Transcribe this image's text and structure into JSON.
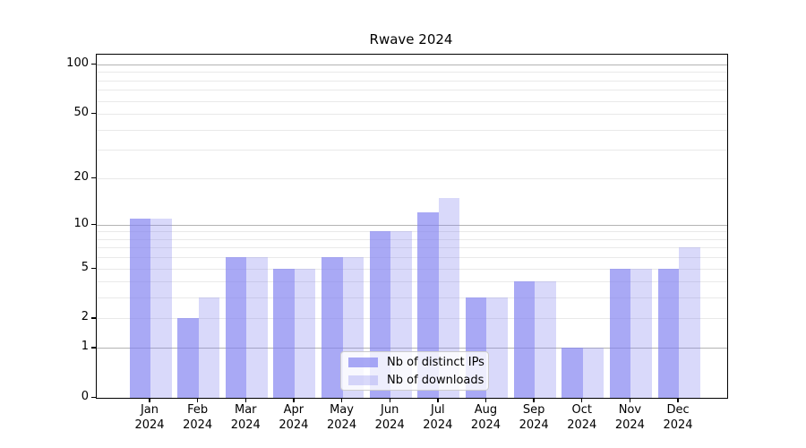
{
  "chart_data": {
    "type": "bar",
    "title": "Rwave 2024",
    "categories": [
      "Jan",
      "Feb",
      "Mar",
      "Apr",
      "May",
      "Jun",
      "Jul",
      "Aug",
      "Sep",
      "Oct",
      "Nov",
      "Dec"
    ],
    "x_tick_second_line": "2024",
    "series": [
      {
        "name": "Nb of distinct IPs",
        "color": "rgba(128,128,240,0.68)",
        "approx_hex": "#A9A9F4",
        "values": [
          11,
          2,
          6,
          5,
          6,
          9,
          12,
          3,
          4,
          1,
          5,
          5
        ]
      },
      {
        "name": "Nb of downloads",
        "color": "rgba(128,128,240,0.30)",
        "approx_hex": "#DCDCF8",
        "values": [
          11,
          3,
          6,
          5,
          6,
          9,
          15,
          3,
          4,
          1,
          5,
          7
        ]
      }
    ],
    "yscale": "log1p",
    "ylim": [
      0,
      100
    ],
    "y_ticks": [
      0,
      1,
      2,
      5,
      10,
      20,
      50,
      100
    ],
    "y_major_gridlines": [
      1,
      10,
      100
    ],
    "y_minor_gridlines": [
      2,
      3,
      4,
      5,
      6,
      7,
      8,
      9,
      20,
      30,
      40,
      50,
      60,
      70,
      80,
      90
    ],
    "grid": true,
    "legend_position": "lower center",
    "colors": {
      "major_grid": "#B3B3B3",
      "minor_grid": "#E9E9E9",
      "axis": "#000000",
      "background": "#FFFFFF"
    }
  }
}
